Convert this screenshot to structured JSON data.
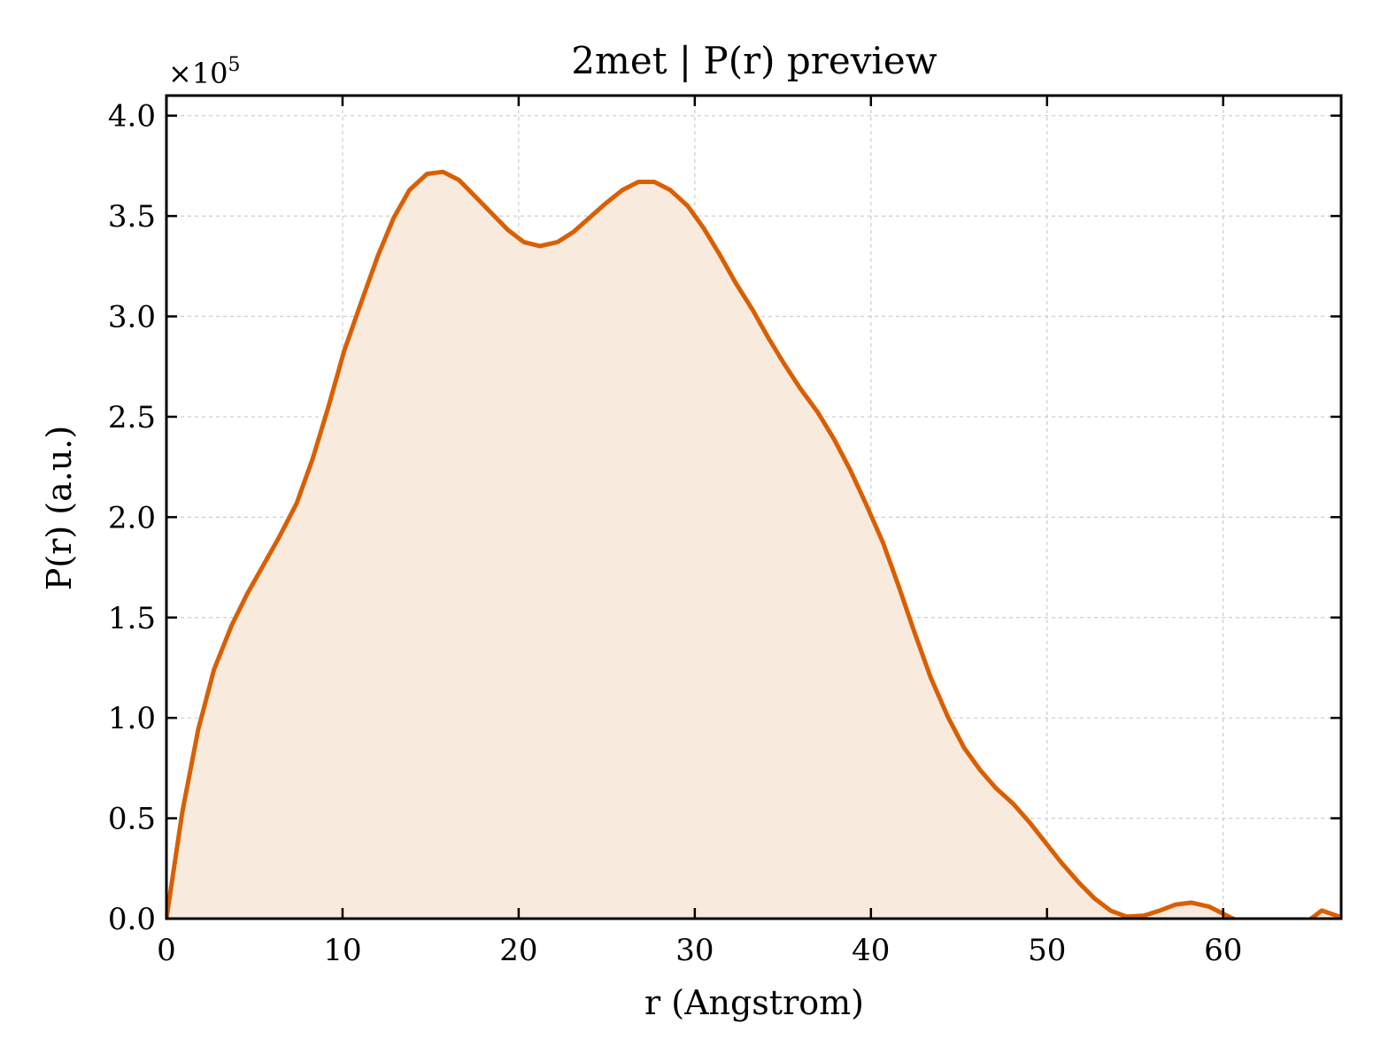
{
  "chart_data": {
    "type": "area",
    "title": "2met | P(r) preview",
    "xlabel": "r (Angstrom)",
    "ylabel": "P(r) (a.u.)",
    "y_multiplier": {
      "base": "×10",
      "exponent": "5"
    },
    "xlim": [
      0,
      66.7
    ],
    "ylim": [
      0,
      4.1
    ],
    "x_ticks": [
      0,
      10,
      20,
      30,
      40,
      50,
      60
    ],
    "x_tick_labels": [
      "0",
      "10",
      "20",
      "30",
      "40",
      "50",
      "60"
    ],
    "y_ticks": [
      0,
      0.5,
      1,
      1.5,
      2,
      2.5,
      3,
      3.5,
      4
    ],
    "y_tick_labels": [
      "0.0",
      "0.5",
      "1.0",
      "1.5",
      "2.0",
      "2.5",
      "3.0",
      "3.5",
      "4.0"
    ],
    "grid": true,
    "line_color": "#d95f02",
    "fill_color": "#f9eade",
    "series": [
      {
        "x": [
          0,
          0.9,
          1.8,
          2.7,
          3.7,
          4.6,
          5.5,
          6.4,
          7.4,
          8.3,
          9.2,
          10.1,
          11.1,
          12.0,
          12.9,
          13.8,
          14.8,
          15.7,
          16.6,
          17.5,
          18.5,
          19.4,
          20.3,
          21.2,
          22.2,
          23.1,
          24.0,
          24.9,
          25.9,
          26.8,
          27.7,
          28.6,
          29.6,
          30.5,
          31.4,
          32.3,
          33.3,
          34.2,
          35.1,
          36.0,
          37.0,
          37.9,
          38.8,
          39.7,
          40.7,
          41.6,
          42.5,
          43.4,
          44.4,
          45.3,
          46.2,
          47.1,
          48.1,
          49.0,
          49.9,
          50.8,
          51.8,
          52.7,
          53.6,
          54.5,
          55.5,
          56.4,
          57.3,
          58.2,
          59.2,
          60.1,
          61.0,
          61.9,
          62.9,
          63.8,
          64.7,
          65.6,
          66.6
        ],
        "y": [
          0.0,
          0.53,
          0.94,
          1.24,
          1.46,
          1.62,
          1.76,
          1.9,
          2.07,
          2.29,
          2.55,
          2.83,
          3.08,
          3.3,
          3.49,
          3.63,
          3.71,
          3.72,
          3.68,
          3.6,
          3.51,
          3.43,
          3.37,
          3.35,
          3.37,
          3.42,
          3.49,
          3.56,
          3.63,
          3.67,
          3.67,
          3.63,
          3.55,
          3.44,
          3.31,
          3.17,
          3.03,
          2.89,
          2.76,
          2.64,
          2.52,
          2.39,
          2.24,
          2.07,
          1.87,
          1.65,
          1.42,
          1.2,
          1.0,
          0.85,
          0.74,
          0.65,
          0.57,
          0.48,
          0.38,
          0.28,
          0.18,
          0.1,
          0.04,
          0.01,
          0.015,
          0.04,
          0.07,
          0.08,
          0.06,
          0.02,
          -0.02,
          -0.06,
          -0.07,
          -0.05,
          -0.02,
          0.04,
          0.01
        ]
      }
    ]
  }
}
